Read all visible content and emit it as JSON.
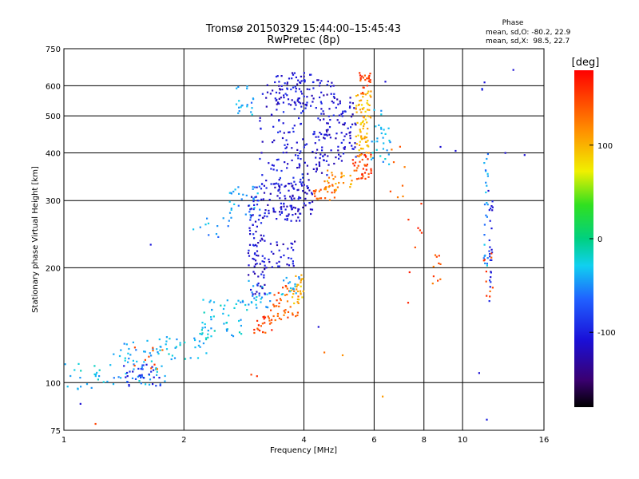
{
  "chart_data": {
    "type": "scatter",
    "title": "Tromsø 20150329 15:44:00–15:45:43",
    "subtitle": "RwPretec (8p)",
    "xlabel": "Frequency [MHz]",
    "ylabel": "Stationary phase Virtual Height [km]",
    "x_scale": "log",
    "y_scale": "log",
    "xlim": [
      1,
      16
    ],
    "ylim": [
      75,
      750
    ],
    "x_ticks": [
      1,
      2,
      4,
      6,
      8,
      10,
      16
    ],
    "x_tick_labels": [
      "1",
      "2",
      "4",
      "6",
      "8",
      "10",
      "16"
    ],
    "y_ticks": [
      75,
      100,
      200,
      300,
      400,
      500,
      600,
      750
    ],
    "y_tick_labels": [
      "75",
      "100",
      "200",
      "300",
      "400",
      "500",
      "600",
      "750"
    ],
    "grid": true,
    "phase_box": {
      "title": "Phase",
      "line1": "mean, sd,O: -80.2, 22.9",
      "line2": "mean, sd,X:  98.5, 22.7"
    },
    "colorbar": {
      "label": "[deg]",
      "range": [
        -180,
        180
      ],
      "ticks": [
        100,
        0,
        -100
      ],
      "tick_labels": [
        "100",
        "0",
        "-100"
      ]
    },
    "point_groups": [
      {
        "x_range": [
          1.0,
          1.3
        ],
        "y_range": [
          95,
          115
        ],
        "n": 22,
        "phase": -30
      },
      {
        "x_range": [
          1.3,
          1.8
        ],
        "y_range": [
          98,
          130
        ],
        "n": 60,
        "phase": -40
      },
      {
        "x_range": [
          1.4,
          1.75
        ],
        "y_range": [
          98,
          112
        ],
        "n": 30,
        "phase": -95
      },
      {
        "x_range": [
          1.5,
          1.8
        ],
        "y_range": [
          105,
          125
        ],
        "n": 10,
        "phase": 140
      },
      {
        "x_range": [
          1.8,
          2.3
        ],
        "y_range": [
          115,
          135
        ],
        "n": 30,
        "phase": -30
      },
      {
        "x_range": [
          2.2,
          2.8
        ],
        "y_range": [
          130,
          165
        ],
        "n": 45,
        "phase": -30
      },
      {
        "x_range": [
          2.8,
          3.3
        ],
        "y_range": [
          155,
          185
        ],
        "n": 30,
        "phase": -40
      },
      {
        "x_range": [
          2.1,
          2.6
        ],
        "y_range": [
          240,
          270
        ],
        "n": 12,
        "phase": -45
      },
      {
        "x_range": [
          2.6,
          3.1
        ],
        "y_range": [
          270,
          330
        ],
        "n": 35,
        "phase": -45
      },
      {
        "x_range": [
          2.7,
          3.0
        ],
        "y_range": [
          500,
          600
        ],
        "n": 20,
        "phase": -45
      },
      {
        "x_range": [
          2.9,
          3.2
        ],
        "y_range": [
          170,
          330
        ],
        "n": 90,
        "phase": -110
      },
      {
        "x_range": [
          3.0,
          3.4
        ],
        "y_range": [
          135,
          150
        ],
        "n": 25,
        "phase": 150
      },
      {
        "x_range": [
          3.3,
          3.9
        ],
        "y_range": [
          145,
          180
        ],
        "n": 40,
        "phase": 140
      },
      {
        "x_range": [
          3.7,
          4.0
        ],
        "y_range": [
          160,
          195
        ],
        "n": 25,
        "phase": 100
      },
      {
        "x_range": [
          3.5,
          3.9
        ],
        "y_range": [
          170,
          190
        ],
        "n": 15,
        "phase": -40
      },
      {
        "x_range": [
          3.2,
          3.8
        ],
        "y_range": [
          200,
          235
        ],
        "n": 30,
        "phase": -110
      },
      {
        "x_range": [
          3.2,
          4.2
        ],
        "y_range": [
          265,
          340
        ],
        "n": 110,
        "phase": -110
      },
      {
        "x_range": [
          3.1,
          4.1
        ],
        "y_range": [
          320,
          620
        ],
        "n": 120,
        "phase": -105
      },
      {
        "x_range": [
          3.4,
          4.2
        ],
        "y_range": [
          530,
          650
        ],
        "n": 60,
        "phase": -110
      },
      {
        "x_range": [
          4.2,
          4.8
        ],
        "y_range": [
          300,
          330
        ],
        "n": 25,
        "phase": 140
      },
      {
        "x_range": [
          4.5,
          5.3
        ],
        "y_range": [
          320,
          360
        ],
        "n": 30,
        "phase": 110
      },
      {
        "x_range": [
          4.2,
          4.8
        ],
        "y_range": [
          350,
          640
        ],
        "n": 90,
        "phase": -110
      },
      {
        "x_range": [
          4.8,
          5.4
        ],
        "y_range": [
          380,
          560
        ],
        "n": 60,
        "phase": -110
      },
      {
        "x_range": [
          5.3,
          5.9
        ],
        "y_range": [
          340,
          400
        ],
        "n": 40,
        "phase": 150
      },
      {
        "x_range": [
          5.4,
          5.9
        ],
        "y_range": [
          390,
          580
        ],
        "n": 80,
        "phase": 100
      },
      {
        "x_range": [
          5.5,
          5.9
        ],
        "y_range": [
          570,
          650
        ],
        "n": 25,
        "phase": 150
      },
      {
        "x_range": [
          5.9,
          6.6
        ],
        "y_range": [
          370,
          520
        ],
        "n": 30,
        "phase": -40
      },
      {
        "x_range": [
          6.5,
          7.2
        ],
        "y_range": [
          300,
          420
        ],
        "n": 8,
        "phase": 130
      },
      {
        "x_range": [
          7.3,
          7.9
        ],
        "y_range": [
          160,
          300
        ],
        "n": 8,
        "phase": 160
      },
      {
        "x_range": [
          8.4,
          8.8
        ],
        "y_range": [
          175,
          250
        ],
        "n": 10,
        "phase": 140
      },
      {
        "x_range": [
          11.3,
          11.6
        ],
        "y_range": [
          200,
          410
        ],
        "n": 25,
        "phase": -45
      },
      {
        "x_range": [
          11.6,
          11.9
        ],
        "y_range": [
          160,
          320
        ],
        "n": 25,
        "phase": -100
      },
      {
        "x_range": [
          11.3,
          11.9
        ],
        "y_range": [
          160,
          220
        ],
        "n": 10,
        "phase": 150
      },
      {
        "x_range": [
          11.0,
          11.4
        ],
        "y_range": [
          580,
          620
        ],
        "n": 3,
        "phase": -110
      }
    ],
    "extra_points": [
      {
        "x": 1.2,
        "y": 78,
        "phase": 150
      },
      {
        "x": 1.1,
        "y": 88,
        "phase": -110
      },
      {
        "x": 1.65,
        "y": 230,
        "phase": -105
      },
      {
        "x": 2.95,
        "y": 105,
        "phase": 150
      },
      {
        "x": 3.05,
        "y": 104,
        "phase": 160
      },
      {
        "x": 4.35,
        "y": 140,
        "phase": -110
      },
      {
        "x": 4.5,
        "y": 120,
        "phase": 130
      },
      {
        "x": 5.0,
        "y": 118,
        "phase": 115
      },
      {
        "x": 6.3,
        "y": 92,
        "phase": 110
      },
      {
        "x": 6.4,
        "y": 615,
        "phase": -110
      },
      {
        "x": 8.8,
        "y": 415,
        "phase": -110
      },
      {
        "x": 9.6,
        "y": 405,
        "phase": -110
      },
      {
        "x": 11.0,
        "y": 106,
        "phase": -110
      },
      {
        "x": 11.5,
        "y": 80,
        "phase": -100
      },
      {
        "x": 12.8,
        "y": 400,
        "phase": -110
      },
      {
        "x": 13.4,
        "y": 660,
        "phase": -110
      },
      {
        "x": 14.3,
        "y": 395,
        "phase": -110
      }
    ]
  }
}
